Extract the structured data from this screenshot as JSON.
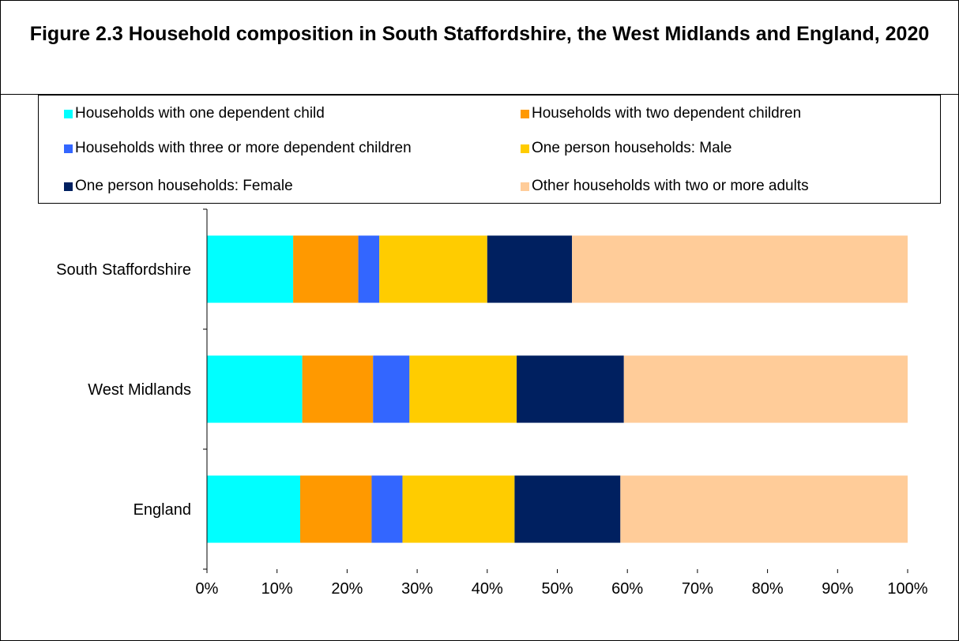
{
  "title": "Figure 2.3 Household composition in South Staffordshire, the West Midlands and England, 2020",
  "chart_data": {
    "type": "bar",
    "orientation": "horizontal",
    "stacked": "percent",
    "categories": [
      "South Staffordshire",
      "West Midlands",
      "England"
    ],
    "series": [
      {
        "name": "Households with one dependent child",
        "color": "#00FFFF",
        "values": [
          12.3,
          13.6,
          13.3
        ]
      },
      {
        "name": "Households with two dependent children",
        "color": "#FF9900",
        "values": [
          9.3,
          10.1,
          10.2
        ]
      },
      {
        "name": "Households with three or more dependent children",
        "color": "#3366FF",
        "values": [
          3.0,
          5.2,
          4.4
        ]
      },
      {
        "name": "One person households: Male",
        "color": "#FFCC00",
        "values": [
          15.4,
          15.3,
          16.0
        ]
      },
      {
        "name": "One person households: Female",
        "color": "#002060",
        "values": [
          12.1,
          15.3,
          15.1
        ]
      },
      {
        "name": "Other households with two or more adults",
        "color": "#FFCC99",
        "values": [
          47.9,
          40.5,
          41.0
        ]
      }
    ],
    "xlim": [
      0,
      100
    ],
    "xticks": [
      "0%",
      "10%",
      "20%",
      "30%",
      "40%",
      "50%",
      "60%",
      "70%",
      "80%",
      "90%",
      "100%"
    ],
    "grid": false,
    "legend_position": "top"
  }
}
